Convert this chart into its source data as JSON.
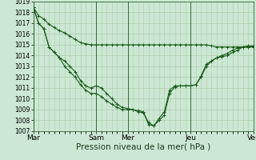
{
  "background_color": "#cce8d4",
  "grid_color": "#aaccaa",
  "line_color": "#1a5c1a",
  "ylim": [
    1007,
    1019
  ],
  "yticks": [
    1007,
    1008,
    1009,
    1010,
    1011,
    1012,
    1013,
    1014,
    1015,
    1016,
    1017,
    1018,
    1019
  ],
  "xlabel": "Pression niveau de la mer( hPa )",
  "xlabel_fontsize": 7.5,
  "day_labels": [
    "Mar",
    "",
    "Sam",
    "Mer",
    "",
    "Jeu",
    "",
    "Ven"
  ],
  "day_positions": [
    0,
    36,
    72,
    108,
    144,
    180,
    216,
    252
  ],
  "vlines": [
    0,
    72,
    108,
    180,
    252
  ],
  "vline_labels": [
    "Mar",
    "Sam",
    "Mer",
    "Jeu",
    "Ven"
  ],
  "line1_x": [
    0,
    6,
    12,
    18,
    24,
    30,
    36,
    42,
    48,
    54,
    60,
    66,
    72,
    78,
    84,
    90,
    96,
    102,
    108,
    114,
    120,
    126,
    132,
    138,
    144,
    150,
    156,
    162,
    168,
    174,
    180,
    186,
    192,
    198,
    204,
    210,
    216,
    222,
    228,
    234,
    240,
    246,
    252
  ],
  "line1_y": [
    1018.5,
    1017.7,
    1017.4,
    1016.9,
    1016.6,
    1016.3,
    1016.1,
    1015.8,
    1015.5,
    1015.2,
    1015.1,
    1015.0,
    1015.0,
    1015.0,
    1015.0,
    1015.0,
    1015.0,
    1015.0,
    1015.0,
    1015.0,
    1015.0,
    1015.0,
    1015.0,
    1015.0,
    1015.0,
    1015.0,
    1015.0,
    1015.0,
    1015.0,
    1015.0,
    1015.0,
    1015.0,
    1015.0,
    1015.0,
    1014.9,
    1014.8,
    1014.8,
    1014.8,
    1014.8,
    1014.8,
    1014.8,
    1014.8,
    1014.8
  ],
  "line2_x": [
    0,
    6,
    12,
    18,
    24,
    30,
    36,
    42,
    48,
    54,
    60,
    66,
    72,
    78,
    84,
    90,
    96,
    102,
    108,
    114,
    120,
    126,
    132,
    138,
    144,
    150,
    156,
    162,
    168,
    174,
    180,
    186,
    192,
    198,
    204,
    210,
    216,
    222,
    228,
    234,
    240,
    246,
    252
  ],
  "line2_y": [
    1018.5,
    1017.0,
    1016.5,
    1014.8,
    1014.3,
    1013.8,
    1013.5,
    1013.0,
    1012.5,
    1011.7,
    1011.2,
    1011.0,
    1011.2,
    1011.0,
    1010.5,
    1010.0,
    1009.5,
    1009.2,
    1009.1,
    1009.0,
    1008.8,
    1008.7,
    1007.8,
    1007.5,
    1008.0,
    1008.5,
    1010.5,
    1011.1,
    1011.2,
    1011.2,
    1011.2,
    1011.3,
    1012.0,
    1013.0,
    1013.5,
    1013.8,
    1013.9,
    1014.0,
    1014.3,
    1014.5,
    1014.8,
    1014.8,
    1014.8
  ],
  "line3_x": [
    0,
    6,
    12,
    18,
    24,
    30,
    36,
    42,
    48,
    54,
    60,
    66,
    72,
    78,
    84,
    90,
    96,
    102,
    108,
    114,
    120,
    126,
    132,
    138,
    144,
    150,
    156,
    162,
    168,
    174,
    180,
    186,
    192,
    198,
    204,
    210,
    216,
    222,
    228,
    234,
    240,
    246,
    252
  ],
  "line3_y": [
    1018.5,
    1017.0,
    1016.5,
    1014.8,
    1014.3,
    1013.8,
    1013.0,
    1012.5,
    1012.0,
    1011.3,
    1010.8,
    1010.5,
    1010.5,
    1010.2,
    1009.8,
    1009.5,
    1009.2,
    1009.0,
    1009.0,
    1009.0,
    1008.9,
    1008.8,
    1007.6,
    1007.5,
    1008.2,
    1008.8,
    1010.8,
    1011.2,
    1011.2,
    1011.2,
    1011.2,
    1011.3,
    1012.1,
    1013.2,
    1013.5,
    1013.8,
    1014.0,
    1014.2,
    1014.5,
    1014.7,
    1014.8,
    1014.9,
    1014.9
  ]
}
